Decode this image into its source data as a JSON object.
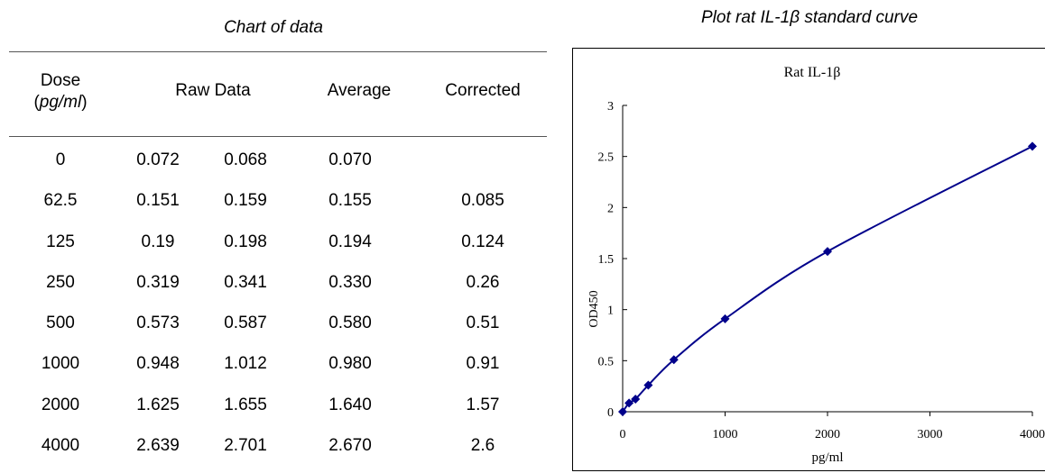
{
  "table": {
    "title": "Chart of data",
    "headers": {
      "dose": "Dose",
      "dose_unit": "pg/ml",
      "raw": "Raw Data",
      "average": "Average",
      "corrected": "Corrected"
    },
    "rows": [
      {
        "dose": "0",
        "raw1": "0.072",
        "raw2": "0.068",
        "avg": "0.070",
        "corrected": ""
      },
      {
        "dose": "62.5",
        "raw1": "0.151",
        "raw2": "0.159",
        "avg": "0.155",
        "corrected": "0.085"
      },
      {
        "dose": "125",
        "raw1": "0.19",
        "raw2": "0.198",
        "avg": "0.194",
        "corrected": "0.124"
      },
      {
        "dose": "250",
        "raw1": "0.319",
        "raw2": "0.341",
        "avg": "0.330",
        "corrected": "0.26"
      },
      {
        "dose": "500",
        "raw1": "0.573",
        "raw2": "0.587",
        "avg": "0.580",
        "corrected": "0.51"
      },
      {
        "dose": "1000",
        "raw1": "0.948",
        "raw2": "1.012",
        "avg": "0.980",
        "corrected": "0.91"
      },
      {
        "dose": "2000",
        "raw1": "1.625",
        "raw2": "1.655",
        "avg": "1.640",
        "corrected": "1.57"
      },
      {
        "dose": "4000",
        "raw1": "2.639",
        "raw2": "2.701",
        "avg": "2.670",
        "corrected": "2.6"
      }
    ]
  },
  "chart_caption": "Plot rat IL-1β standard curve",
  "chart_data": {
    "type": "scatter",
    "title": "Rat  IL-1β",
    "xlabel": "pg/ml",
    "ylabel": "OD450",
    "xlim": [
      0,
      4000
    ],
    "ylim": [
      0,
      3
    ],
    "xticks": [
      0,
      1000,
      2000,
      3000,
      4000
    ],
    "yticks": [
      0,
      0.5,
      1,
      1.5,
      2,
      2.5,
      3
    ],
    "ytick_labels": [
      "0",
      "0.5",
      "1",
      "1.5",
      "2",
      "2.5",
      "3"
    ],
    "grid": false,
    "legend": "none",
    "marker": "diamond",
    "trendline": "smooth",
    "color": "#00008b",
    "x": [
      0,
      62.5,
      125,
      250,
      500,
      1000,
      2000,
      4000
    ],
    "y": [
      0,
      0.085,
      0.124,
      0.26,
      0.51,
      0.91,
      1.57,
      2.6
    ]
  }
}
